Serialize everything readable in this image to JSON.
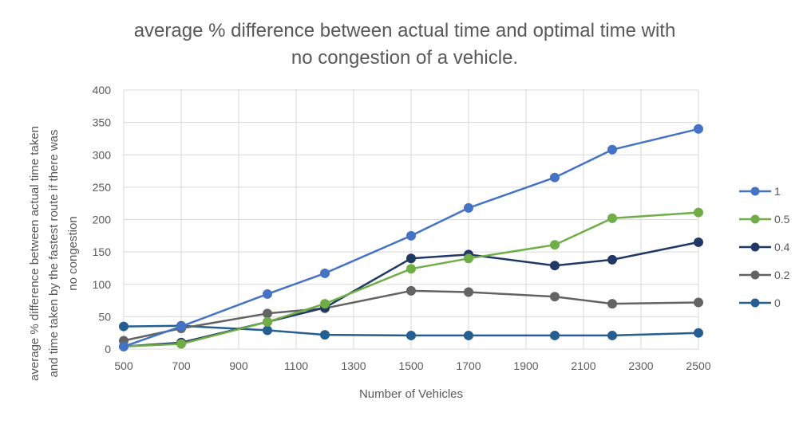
{
  "chart_data": {
    "type": "line",
    "title_lines": [
      "average % difference  between actual time and optimal time with",
      "no congestion of a vehicle."
    ],
    "xlabel": "Number of Vehicles",
    "ylabel_lines": [
      "average % difference  between actual time taken",
      "and time taken by the fastest route if there was",
      "no congestion"
    ],
    "xlim": [
      500,
      2500
    ],
    "ylim": [
      0,
      400
    ],
    "xticks": [
      500,
      700,
      900,
      1100,
      1300,
      1500,
      1700,
      1900,
      2100,
      2300,
      2500
    ],
    "yticks": [
      0,
      50,
      100,
      150,
      200,
      250,
      300,
      350,
      400
    ],
    "grid": true,
    "legend_position": "right",
    "x": [
      500,
      700,
      1000,
      1200,
      1500,
      1700,
      2000,
      2200,
      2500
    ],
    "series": [
      {
        "name": "1",
        "color": "#4472C4",
        "values": [
          4,
          35,
          85,
          117,
          175,
          218,
          265,
          308,
          340
        ]
      },
      {
        "name": "0.5",
        "color": "#70AD47",
        "values": [
          4,
          8,
          42,
          70,
          124,
          140,
          161,
          202,
          211
        ]
      },
      {
        "name": "0.4",
        "color": "#203864",
        "values": [
          4,
          10,
          42,
          64,
          140,
          146,
          129,
          138,
          165
        ]
      },
      {
        "name": "0.2",
        "color": "#636363",
        "values": [
          13,
          32,
          55,
          63,
          90,
          88,
          81,
          70,
          72
        ]
      },
      {
        "name": "0",
        "color": "#255E91",
        "values": [
          35,
          36,
          29,
          22,
          21,
          21,
          21,
          21,
          25
        ]
      }
    ]
  }
}
